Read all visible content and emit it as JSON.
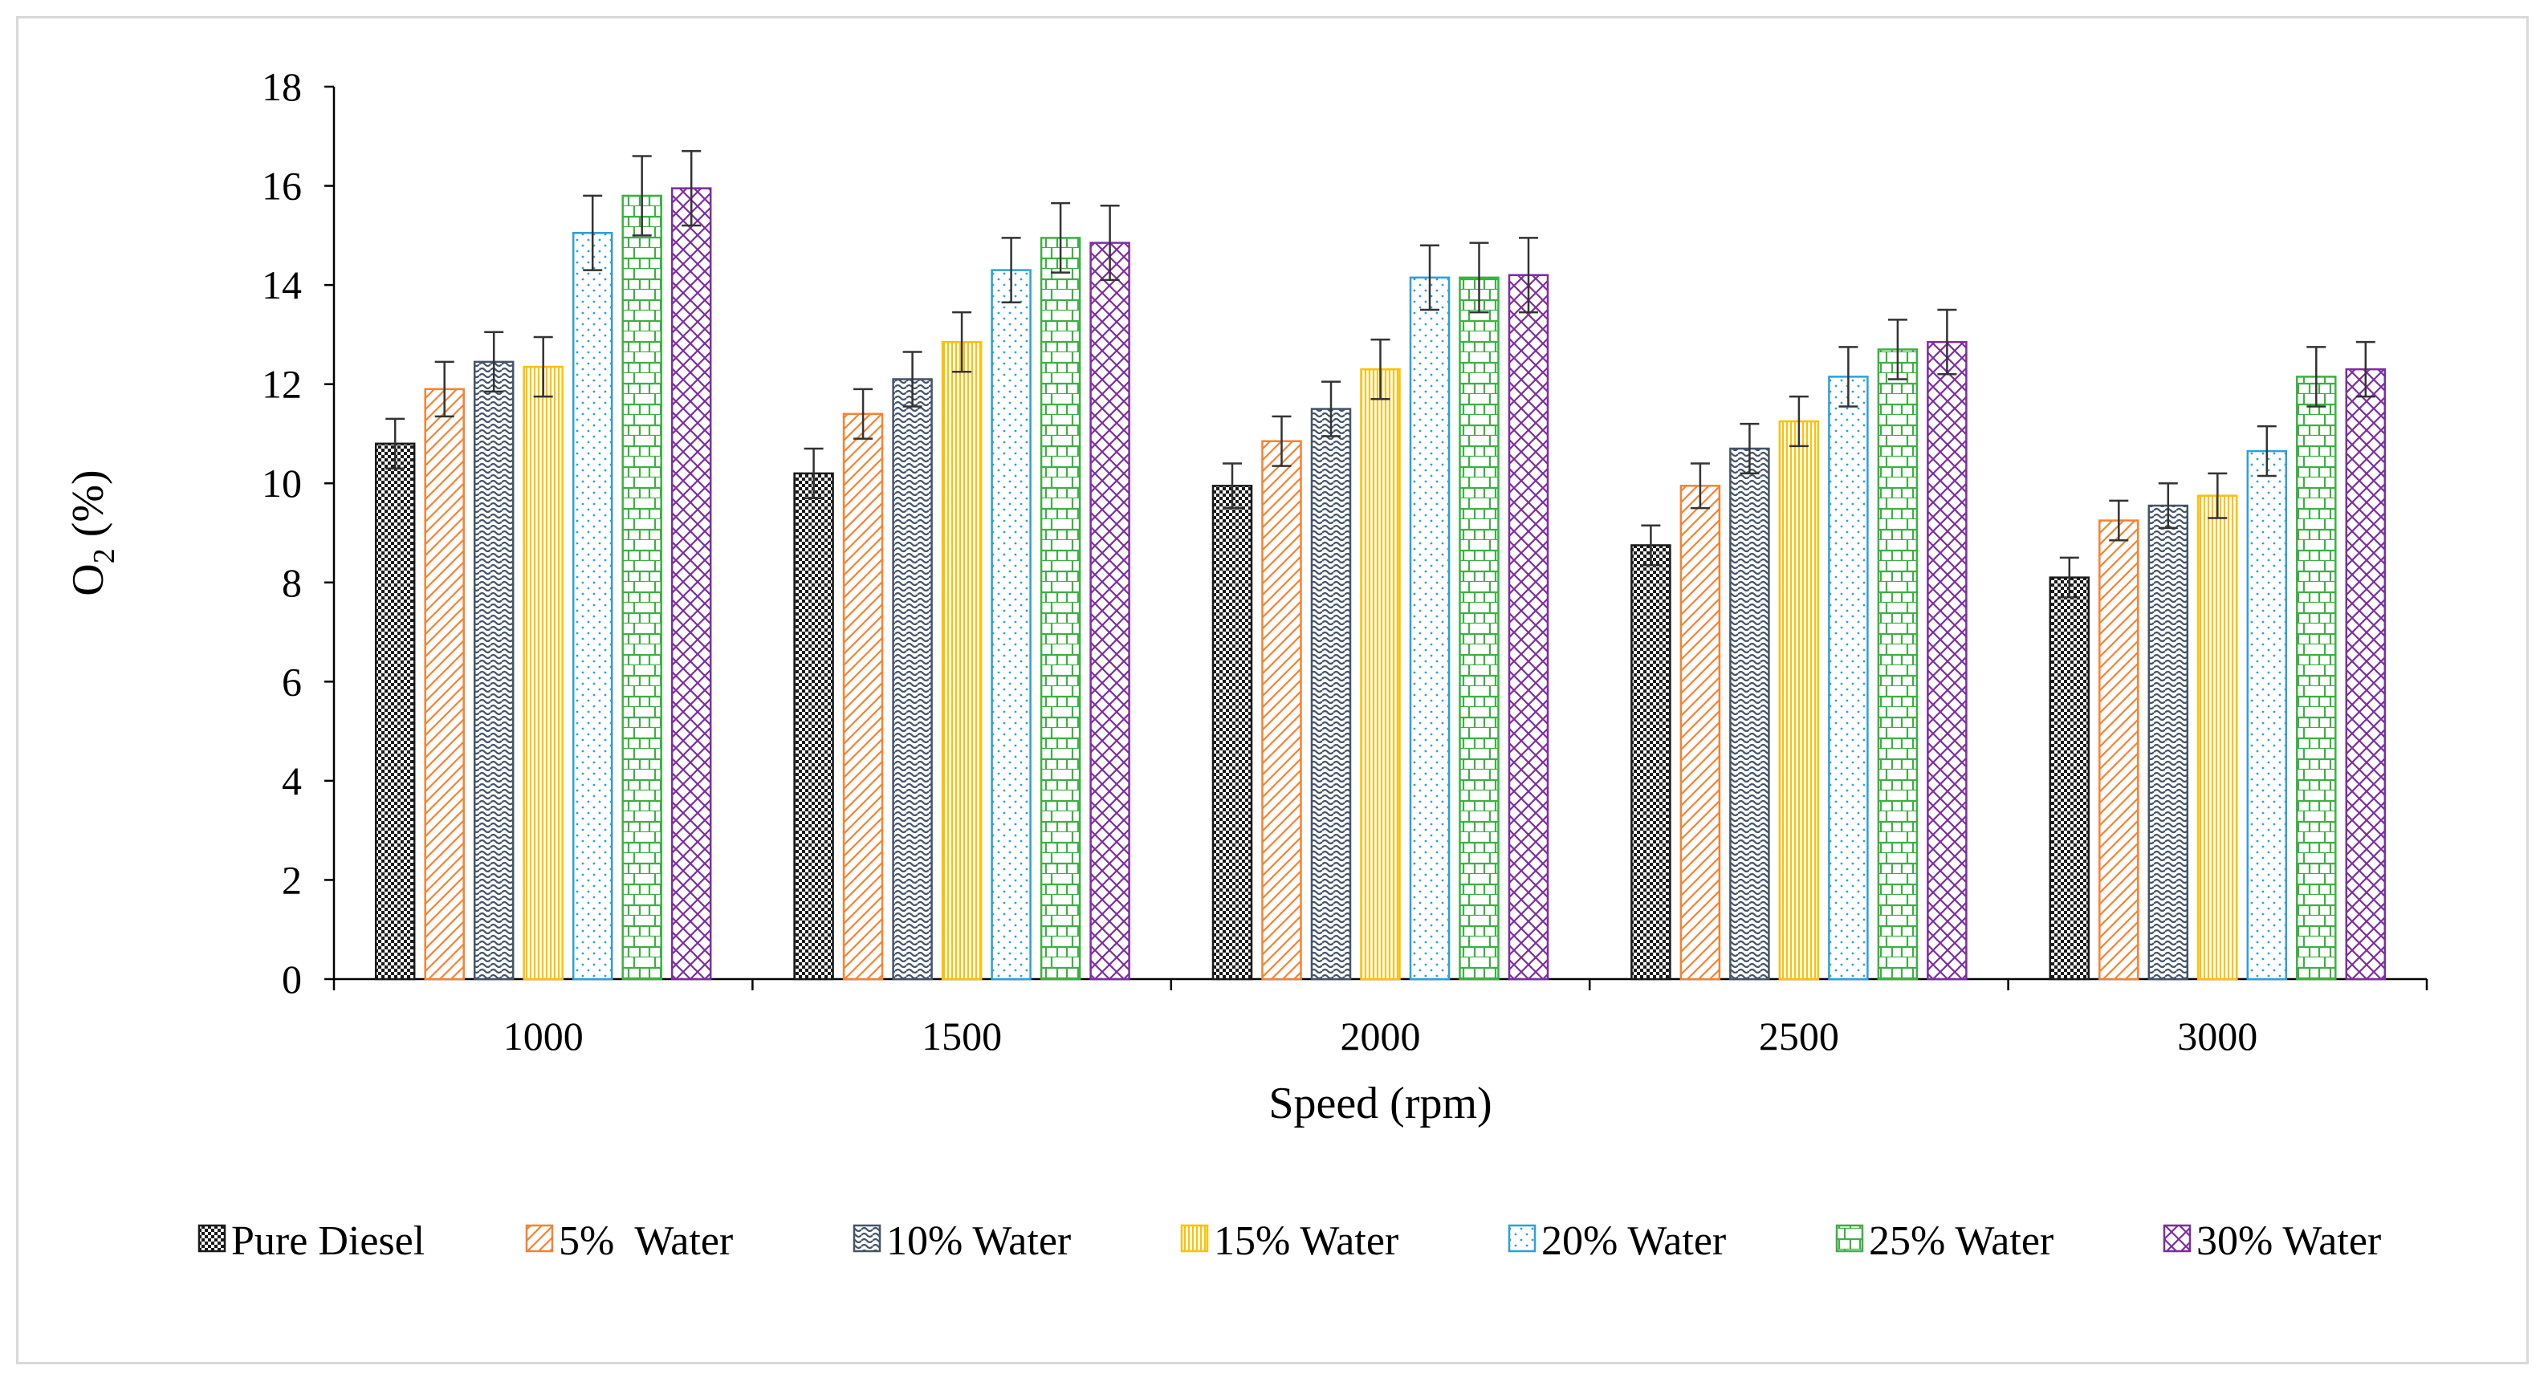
{
  "chart_data": {
    "type": "bar",
    "title": "",
    "xlabel": "Speed (rpm)",
    "ylabel": {
      "main": "O",
      "subscript": "2",
      "unit": " (%)"
    },
    "categories": [
      "1000",
      "1500",
      "2000",
      "2500",
      "3000"
    ],
    "ylim": [
      0,
      18
    ],
    "yticks": [
      0,
      2,
      4,
      6,
      8,
      10,
      12,
      14,
      16,
      18
    ],
    "grid": false,
    "legend_position": "bottom",
    "error_bars": true,
    "series": [
      {
        "name": "Pure Diesel",
        "color": "#1a1a1a",
        "pattern": "checker",
        "values": [
          10.8,
          10.2,
          9.95,
          8.75,
          8.1
        ],
        "errors": [
          0.5,
          0.5,
          0.45,
          0.4,
          0.4
        ]
      },
      {
        "name": "5%  Water",
        "color": "#f58231",
        "pattern": "diagonal",
        "values": [
          11.9,
          11.4,
          10.85,
          9.95,
          9.25
        ],
        "errors": [
          0.55,
          0.5,
          0.5,
          0.45,
          0.4
        ]
      },
      {
        "name": "10% Water",
        "color": "#44546a",
        "pattern": "wave",
        "values": [
          12.45,
          12.1,
          11.5,
          10.7,
          9.55
        ],
        "errors": [
          0.6,
          0.55,
          0.55,
          0.5,
          0.45
        ]
      },
      {
        "name": "15% Water",
        "color": "#ffc000",
        "pattern": "vertical",
        "values": [
          12.35,
          12.85,
          12.3,
          11.25,
          9.75
        ],
        "errors": [
          0.6,
          0.6,
          0.6,
          0.5,
          0.45
        ]
      },
      {
        "name": "20% Water",
        "color": "#2e9fd8",
        "pattern": "dots",
        "values": [
          15.05,
          14.3,
          14.15,
          12.15,
          10.65
        ],
        "errors": [
          0.75,
          0.65,
          0.65,
          0.6,
          0.5
        ]
      },
      {
        "name": "25% Water",
        "color": "#3cb043",
        "pattern": "grid",
        "values": [
          15.8,
          14.95,
          14.15,
          12.7,
          12.15
        ],
        "errors": [
          0.8,
          0.7,
          0.7,
          0.6,
          0.6
        ]
      },
      {
        "name": "30% Water",
        "color": "#7b2d9e",
        "pattern": "lattice",
        "values": [
          15.95,
          14.85,
          14.2,
          12.85,
          12.3
        ],
        "errors": [
          0.75,
          0.75,
          0.75,
          0.65,
          0.55
        ]
      }
    ]
  }
}
